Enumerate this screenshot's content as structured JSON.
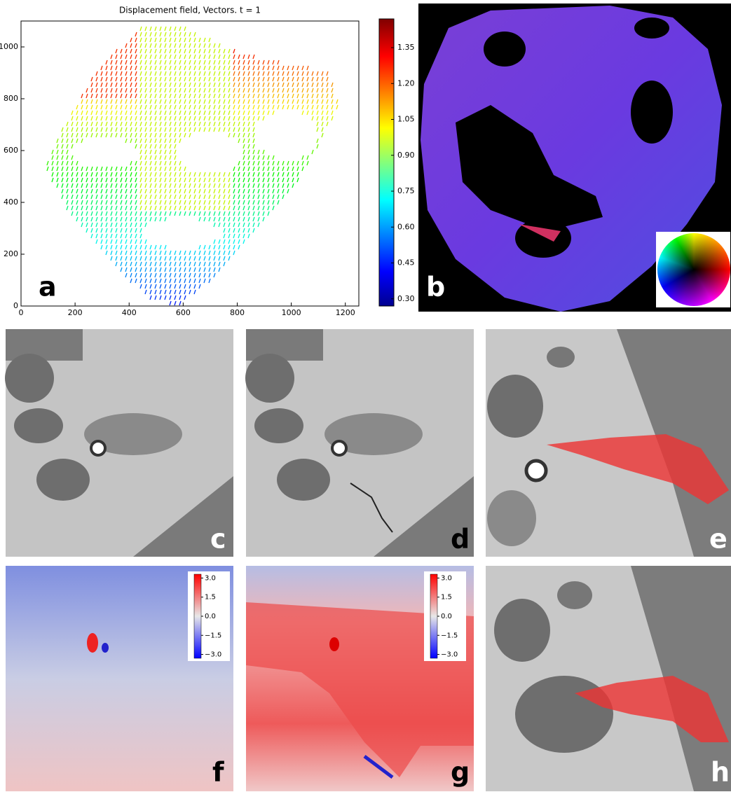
{
  "panel_a": {
    "title": "Displacement field, Vectors. t = 1",
    "xlim": [
      0,
      1250
    ],
    "xticks": [
      0,
      200,
      400,
      600,
      800,
      1000,
      1200
    ],
    "ylim": [
      0,
      1100
    ],
    "yticks": [
      0,
      200,
      400,
      600,
      800,
      1000
    ],
    "colorbar": {
      "lim": [
        0.27,
        1.47
      ],
      "ticks": [
        {
          "value": 0.3,
          "label": "0.30"
        },
        {
          "value": 0.45,
          "label": "0.45"
        },
        {
          "value": 0.6,
          "label": "0.60"
        },
        {
          "value": 0.75,
          "label": "0.75"
        },
        {
          "value": 0.9,
          "label": "0.90"
        },
        {
          "value": 1.05,
          "label": "1.05"
        },
        {
          "value": 1.2,
          "label": "1.20"
        },
        {
          "value": 1.35,
          "label": "1.35"
        }
      ]
    }
  },
  "panel_f_colorbar": {
    "lim": [
      -3.3,
      3.3
    ],
    "ticks": [
      {
        "value": 3,
        "label": "3.0"
      },
      {
        "value": 1.5,
        "label": "1.5"
      },
      {
        "value": 0,
        "label": "0.0"
      },
      {
        "value": -1.5,
        "label": "−1.5"
      },
      {
        "value": -3,
        "label": "−3.0"
      }
    ]
  },
  "panel_g_colorbar": {
    "lim": [
      -3.3,
      3.3
    ],
    "ticks": [
      {
        "value": 3,
        "label": "3.0"
      },
      {
        "value": 1.5,
        "label": "1.5"
      },
      {
        "value": 0,
        "label": "0.0"
      },
      {
        "value": -1.5,
        "label": "−1.5"
      },
      {
        "value": -3,
        "label": "−3.0"
      }
    ]
  },
  "panel_labels": [
    "a",
    "b",
    "c",
    "d",
    "e",
    "f",
    "g",
    "h"
  ]
}
